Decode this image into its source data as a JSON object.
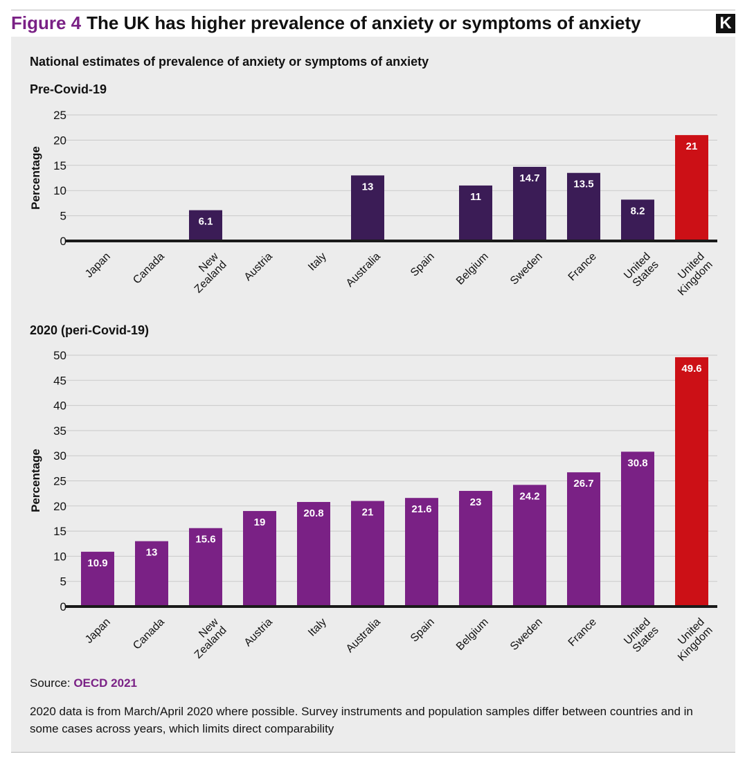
{
  "header": {
    "figure_label": "Figure 4",
    "title": "The UK has higher prevalence of anxiety or symptoms of anxiety",
    "logo_letter": "K"
  },
  "subtitle": "National estimates of prevalence of anxiety or symptoms of anxiety",
  "colors": {
    "pre_bar": "#3b1c56",
    "peri_bar": "#7a2185",
    "highlight_bar": "#cc1016",
    "axis": "#1a1a1a",
    "grid": "#c9c9c9",
    "accent": "#7a2185"
  },
  "chart_data": [
    {
      "type": "bar",
      "title": "Pre-Covid-19",
      "ylabel": "Percentage",
      "categories": [
        "Japan",
        "Canada",
        "New Zealand",
        "Austria",
        "Italy",
        "Australia",
        "Spain",
        "Belgium",
        "Sweden",
        "France",
        "United States",
        "United Kingdom"
      ],
      "category_lines": [
        [
          "Japan"
        ],
        [
          "Canada"
        ],
        [
          "New",
          "Zealand"
        ],
        [
          "Austria"
        ],
        [
          "Italy"
        ],
        [
          "Australia"
        ],
        [
          "Spain"
        ],
        [
          "Belgium"
        ],
        [
          "Sweden"
        ],
        [
          "France"
        ],
        [
          "United",
          "States"
        ],
        [
          "United",
          "Kingdom"
        ]
      ],
      "values": [
        null,
        null,
        6.1,
        null,
        null,
        13,
        null,
        11,
        14.7,
        13.5,
        8.2,
        21
      ],
      "highlight": "United Kingdom",
      "ylim": [
        0,
        25
      ],
      "yticks": [
        0,
        5,
        10,
        15,
        20,
        25
      ],
      "grid": true
    },
    {
      "type": "bar",
      "title": "2020 (peri-Covid-19)",
      "ylabel": "Percentage",
      "categories": [
        "Japan",
        "Canada",
        "New Zealand",
        "Austria",
        "Italy",
        "Australia",
        "Spain",
        "Belgium",
        "Sweden",
        "France",
        "United States",
        "United Kingdom"
      ],
      "category_lines": [
        [
          "Japan"
        ],
        [
          "Canada"
        ],
        [
          "New",
          "Zealand"
        ],
        [
          "Austria"
        ],
        [
          "Italy"
        ],
        [
          "Australia"
        ],
        [
          "Spain"
        ],
        [
          "Belgium"
        ],
        [
          "Sweden"
        ],
        [
          "France"
        ],
        [
          "United",
          "States"
        ],
        [
          "United",
          "Kingdom"
        ]
      ],
      "values": [
        10.9,
        13,
        15.6,
        19,
        20.8,
        21,
        21.6,
        23,
        24.2,
        26.7,
        30.8,
        49.6
      ],
      "highlight": "United Kingdom",
      "ylim": [
        0,
        50
      ],
      "yticks": [
        0,
        5,
        10,
        15,
        20,
        25,
        30,
        35,
        40,
        45,
        50
      ],
      "grid": true
    }
  ],
  "source": {
    "label": "Source:",
    "link_text": "OECD 2021"
  },
  "note": "2020 data is from March/April 2020 where possible. Survey instruments and population samples differ between countries and in some cases across years, which limits direct comparability"
}
